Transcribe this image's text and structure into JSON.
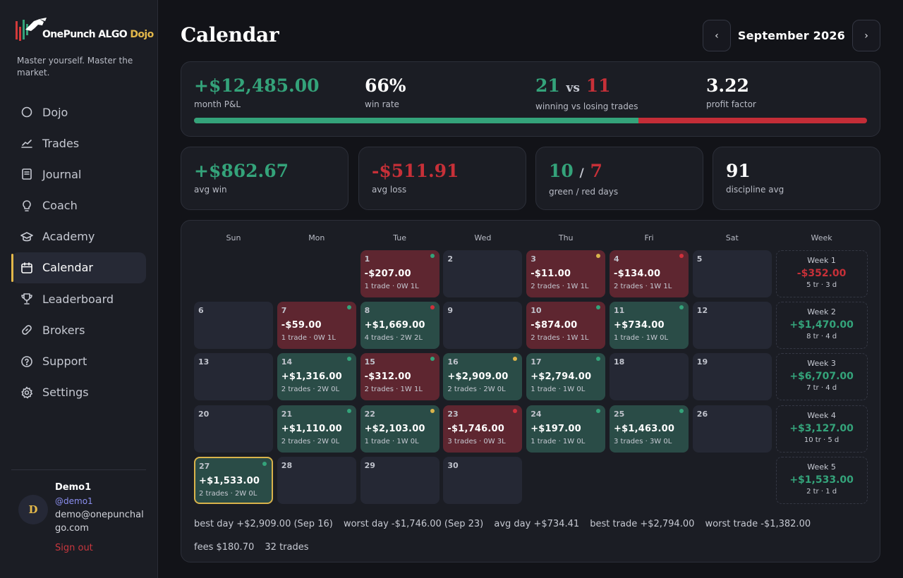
{
  "app": {
    "logo": {
      "part1": "OnePunch ALGO",
      "part2": "Dojo"
    },
    "tagline": "Master yourself. Master the market."
  },
  "nav": [
    {
      "label": "Dojo",
      "icon": "circle-icon"
    },
    {
      "label": "Trades",
      "icon": "chart-line-icon"
    },
    {
      "label": "Journal",
      "icon": "journal-icon"
    },
    {
      "label": "Coach",
      "icon": "lightbulb-icon"
    },
    {
      "label": "Academy",
      "icon": "graduation-cap-icon"
    },
    {
      "label": "Calendar",
      "icon": "calendar-icon",
      "active": true
    },
    {
      "label": "Leaderboard",
      "icon": "trophy-icon"
    },
    {
      "label": "Brokers",
      "icon": "link-icon"
    },
    {
      "label": "Support",
      "icon": "help-circle-icon"
    },
    {
      "label": "Settings",
      "icon": "gear-icon"
    }
  ],
  "user": {
    "initial": "D",
    "name": "Demo1",
    "handle": "@demo1",
    "email": "demo@onepunchalgo.com",
    "signout": "Sign out"
  },
  "header": {
    "title": "Calendar",
    "month": "September 2026",
    "prev": "‹",
    "next": "›"
  },
  "summary": {
    "pnl": {
      "value": "+$12,485.00",
      "label": "month P&L"
    },
    "winrate": {
      "value": "66%",
      "label": "win rate"
    },
    "wins": "21",
    "vs": "vs",
    "losses": "11",
    "wl_label": "winning vs losing trades",
    "profit_factor": {
      "value": "3.22",
      "label": "profit factor"
    },
    "win_fraction": 0.66
  },
  "cards": {
    "avg_win": {
      "value": "+$862.67",
      "label": "avg win"
    },
    "avg_loss": {
      "value": "-$511.91",
      "label": "avg loss"
    },
    "green_days": "10",
    "slash": "/",
    "red_days": "7",
    "days_label": "green / red days",
    "discipline": {
      "value": "91",
      "label": "discipline avg"
    }
  },
  "colors": {
    "green": "#34a37a",
    "red": "#c73038",
    "gold": "#e3b84a"
  },
  "calendar": {
    "weekdays": [
      "Sun",
      "Mon",
      "Tue",
      "Wed",
      "Thu",
      "Fri",
      "Sat",
      "Week"
    ],
    "days": [
      {
        "d": "1",
        "pnl": "-$207.00",
        "meta": "1 trade · 0W 1L",
        "type": "loss",
        "dot": "g"
      },
      {
        "d": "2"
      },
      {
        "d": "3",
        "pnl": "-$11.00",
        "meta": "2 trades · 1W 1L",
        "type": "loss",
        "dot": "y"
      },
      {
        "d": "4",
        "pnl": "-$134.00",
        "meta": "2 trades · 1W 1L",
        "type": "loss",
        "dot": "r"
      },
      {
        "d": "5"
      },
      {
        "d": "6"
      },
      {
        "d": "7",
        "pnl": "-$59.00",
        "meta": "1 trade · 0W 1L",
        "type": "loss",
        "dot": "g"
      },
      {
        "d": "8",
        "pnl": "+$1,669.00",
        "meta": "4 trades · 2W 2L",
        "type": "win",
        "dot": "r"
      },
      {
        "d": "9"
      },
      {
        "d": "10",
        "pnl": "-$874.00",
        "meta": "2 trades · 1W 1L",
        "type": "loss",
        "dot": "g"
      },
      {
        "d": "11",
        "pnl": "+$734.00",
        "meta": "1 trade · 1W 0L",
        "type": "win",
        "dot": "g"
      },
      {
        "d": "12"
      },
      {
        "d": "13"
      },
      {
        "d": "14",
        "pnl": "+$1,316.00",
        "meta": "2 trades · 2W 0L",
        "type": "win",
        "dot": "g"
      },
      {
        "d": "15",
        "pnl": "-$312.00",
        "meta": "2 trades · 1W 1L",
        "type": "loss",
        "dot": "g"
      },
      {
        "d": "16",
        "pnl": "+$2,909.00",
        "meta": "2 trades · 2W 0L",
        "type": "win",
        "dot": "y"
      },
      {
        "d": "17",
        "pnl": "+$2,794.00",
        "meta": "1 trade · 1W 0L",
        "type": "win",
        "dot": "g"
      },
      {
        "d": "18"
      },
      {
        "d": "19"
      },
      {
        "d": "20"
      },
      {
        "d": "21",
        "pnl": "+$1,110.00",
        "meta": "2 trades · 2W 0L",
        "type": "win",
        "dot": "g"
      },
      {
        "d": "22",
        "pnl": "+$2,103.00",
        "meta": "1 trade · 1W 0L",
        "type": "win",
        "dot": "y"
      },
      {
        "d": "23",
        "pnl": "-$1,746.00",
        "meta": "3 trades · 0W 3L",
        "type": "loss",
        "dot": "r"
      },
      {
        "d": "24",
        "pnl": "+$197.00",
        "meta": "1 trade · 1W 0L",
        "type": "win",
        "dot": "g"
      },
      {
        "d": "25",
        "pnl": "+$1,463.00",
        "meta": "3 trades · 3W 0L",
        "type": "win",
        "dot": "g"
      },
      {
        "d": "26"
      },
      {
        "d": "27",
        "pnl": "+$1,533.00",
        "meta": "2 trades · 2W 0L",
        "type": "win",
        "dot": "g",
        "today": true
      },
      {
        "d": "28"
      },
      {
        "d": "29"
      },
      {
        "d": "30"
      }
    ],
    "first_weekday": 2,
    "weeks": [
      {
        "label": "Week 1",
        "value": "-$352.00",
        "meta": "5 tr · 3 d",
        "type": "loss"
      },
      {
        "label": "Week 2",
        "value": "+$1,470.00",
        "meta": "8 tr · 4 d",
        "type": "win"
      },
      {
        "label": "Week 3",
        "value": "+$6,707.00",
        "meta": "7 tr · 4 d",
        "type": "win"
      },
      {
        "label": "Week 4",
        "value": "+$3,127.00",
        "meta": "10 tr · 5 d",
        "type": "win"
      },
      {
        "label": "Week 5",
        "value": "+$1,533.00",
        "meta": "2 tr · 1 d",
        "type": "win"
      }
    ]
  },
  "footer": [
    "best day +$2,909.00 (Sep 16)",
    "worst day -$1,746.00 (Sep 23)",
    "avg day +$734.41",
    "best trade +$2,794.00",
    "worst trade -$1,382.00",
    "fees $180.70",
    "32 trades"
  ]
}
